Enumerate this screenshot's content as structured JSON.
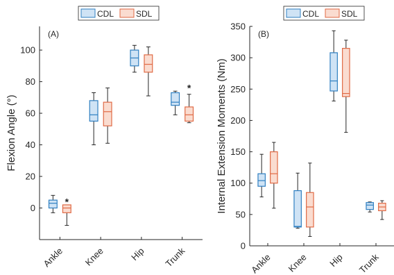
{
  "colors": {
    "CDL": {
      "stroke": "#2f7fc1",
      "fill": "#cfe3f5"
    },
    "SDL": {
      "stroke": "#e06a45",
      "fill": "#fadcd0"
    }
  },
  "chart_data": [
    {
      "type": "boxplot",
      "panel_label": "(A)",
      "ylabel": "Flexion Angle (°)",
      "ylim": [
        -20,
        115
      ],
      "yticks": [
        0,
        20,
        40,
        60,
        80,
        100
      ],
      "categories": [
        "Ankle",
        "Knee",
        "Hip",
        "Trunk"
      ],
      "legend": {
        "placement": "top-center",
        "entries": [
          "CDL",
          "SDL"
        ]
      },
      "series": [
        {
          "name": "CDL",
          "boxes": [
            {
              "min": -3,
              "q1": 0,
              "median": 3,
              "q3": 5,
              "max": 8
            },
            {
              "min": 40,
              "q1": 55,
              "median": 59,
              "q3": 68,
              "max": 73
            },
            {
              "min": 86,
              "q1": 90,
              "median": 95,
              "q3": 100,
              "max": 103
            },
            {
              "min": 59,
              "q1": 65,
              "median": 67,
              "q3": 73,
              "max": 74
            }
          ]
        },
        {
          "name": "SDL",
          "boxes": [
            {
              "min": -11,
              "q1": -3,
              "median": 0,
              "q3": 2,
              "max": 2
            },
            {
              "min": 41,
              "q1": 52,
              "median": 61,
              "q3": 67,
              "max": 76
            },
            {
              "min": 71,
              "q1": 86,
              "median": 91,
              "q3": 97,
              "max": 102
            },
            {
              "min": 54,
              "q1": 55,
              "median": 59,
              "q3": 64,
              "max": 72
            }
          ]
        }
      ],
      "annotations": [
        {
          "text": "*",
          "category": "Ankle",
          "series": "SDL",
          "y": 4
        },
        {
          "text": "*",
          "category": "Trunk",
          "series": "SDL",
          "y": 76
        }
      ]
    },
    {
      "type": "boxplot",
      "panel_label": "(B)",
      "ylabel": "Internal Extension Moments (Nm)",
      "ylim": [
        0,
        350
      ],
      "yticks": [
        0,
        50,
        100,
        150,
        200,
        250,
        300,
        350
      ],
      "categories": [
        "Ankle",
        "Knee",
        "Hip",
        "Trunk"
      ],
      "legend": {
        "placement": "top-center",
        "entries": [
          "CDL",
          "SDL"
        ]
      },
      "series": [
        {
          "name": "CDL",
          "boxes": [
            {
              "min": 78,
              "q1": 95,
              "median": 104,
              "q3": 115,
              "max": 146
            },
            {
              "min": 28,
              "q1": 30,
              "median": 31,
              "q3": 88,
              "max": 116
            },
            {
              "min": 231,
              "q1": 247,
              "median": 263,
              "q3": 308,
              "max": 343
            },
            {
              "min": 54,
              "q1": 58,
              "median": 65,
              "q3": 69,
              "max": 70
            }
          ]
        },
        {
          "name": "SDL",
          "boxes": [
            {
              "min": 60,
              "q1": 100,
              "median": 115,
              "q3": 150,
              "max": 165
            },
            {
              "min": 15,
              "q1": 30,
              "median": 62,
              "q3": 85,
              "max": 132
            },
            {
              "min": 181,
              "q1": 238,
              "median": 243,
              "q3": 315,
              "max": 328
            },
            {
              "min": 42,
              "q1": 56,
              "median": 62,
              "q3": 68,
              "max": 72
            }
          ]
        }
      ]
    }
  ]
}
